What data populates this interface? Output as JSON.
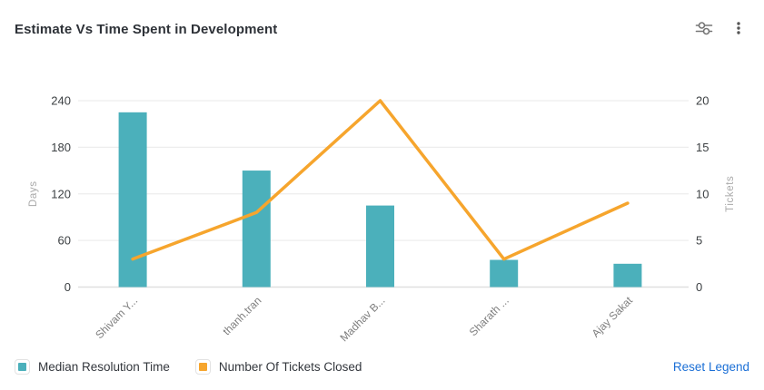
{
  "header": {
    "title": "Estimate Vs Time Spent in Development",
    "icons": [
      {
        "name": "chart-settings-sliders-icon"
      },
      {
        "name": "kebab-menu-icon"
      }
    ]
  },
  "chart_data": {
    "type": "combo-bar-line",
    "title": "Estimate Vs Time Spent in Development",
    "categories": [
      "Shivam Y...",
      "thanh.tran",
      "Madhav B...",
      "Sharath ...",
      "Ajay Sakat"
    ],
    "series": [
      {
        "name": "Median Resolution Time",
        "type": "bar",
        "axis": "left",
        "color": "#4BB0BB",
        "values": [
          225,
          150,
          105,
          35,
          30
        ]
      },
      {
        "name": "Number Of Tickets Closed",
        "type": "line",
        "axis": "right",
        "color": "#F6A52D",
        "values": [
          3,
          8,
          20,
          3,
          9
        ]
      }
    ],
    "left_axis": {
      "label": "Days",
      "ticks": [
        0,
        60,
        120,
        180,
        240
      ],
      "min": 0,
      "max": 240
    },
    "right_axis": {
      "label": "Tickets",
      "ticks": [
        0,
        5,
        10,
        15,
        20
      ],
      "min": 0,
      "max": 20
    },
    "grid": true,
    "legend_position": "bottom",
    "x_label_rotation": -45
  },
  "legend": {
    "items": [
      {
        "label": "Median Resolution Time",
        "color": "#4BB0BB"
      },
      {
        "label": "Number Of Tickets Closed",
        "color": "#F6A52D"
      }
    ],
    "reset_label": "Reset Legend"
  },
  "colors": {
    "bar": "#4BB0BB",
    "line": "#F6A52D",
    "link": "#1B6FD6",
    "grid": "#ededed",
    "axis_line": "#e0e0e0",
    "tick_label": "#3c4043",
    "x_label": "#7e7e7e",
    "axis_name": "#a9a9a9"
  }
}
